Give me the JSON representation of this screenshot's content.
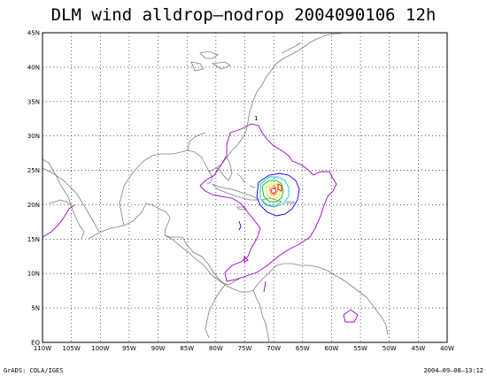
{
  "title": "DLM wind alldrop–nodrop 2004090106 12h",
  "footer": {
    "left": "GrADS: COLA/IGES",
    "right": "2004–09–08–13:12"
  },
  "map": {
    "lon_range": [
      -110,
      -40
    ],
    "lat_range": [
      0,
      45
    ],
    "grid": true,
    "lon_ticks": [
      "110W",
      "105W",
      "100W",
      "95W",
      "90W",
      "85W",
      "80W",
      "75W",
      "70W",
      "65W",
      "60W",
      "55W",
      "50W",
      "45W",
      "40W"
    ],
    "lat_ticks": [
      "EQ",
      "5N",
      "10N",
      "15N",
      "20N",
      "25N",
      "30N",
      "35N",
      "40N",
      "45N"
    ],
    "contour_label": "1",
    "colors": {
      "coast": "#7f7f7f",
      "grid": "#000000",
      "contour_outer": "#a000c8",
      "contour_mid": "#0000ff",
      "contour_cyan": "#00c8c8",
      "contour_green": "#00c800",
      "contour_yellow": "#e6dc32",
      "contour_orange": "#f0a000",
      "contour_red": "#ff0000"
    }
  }
}
